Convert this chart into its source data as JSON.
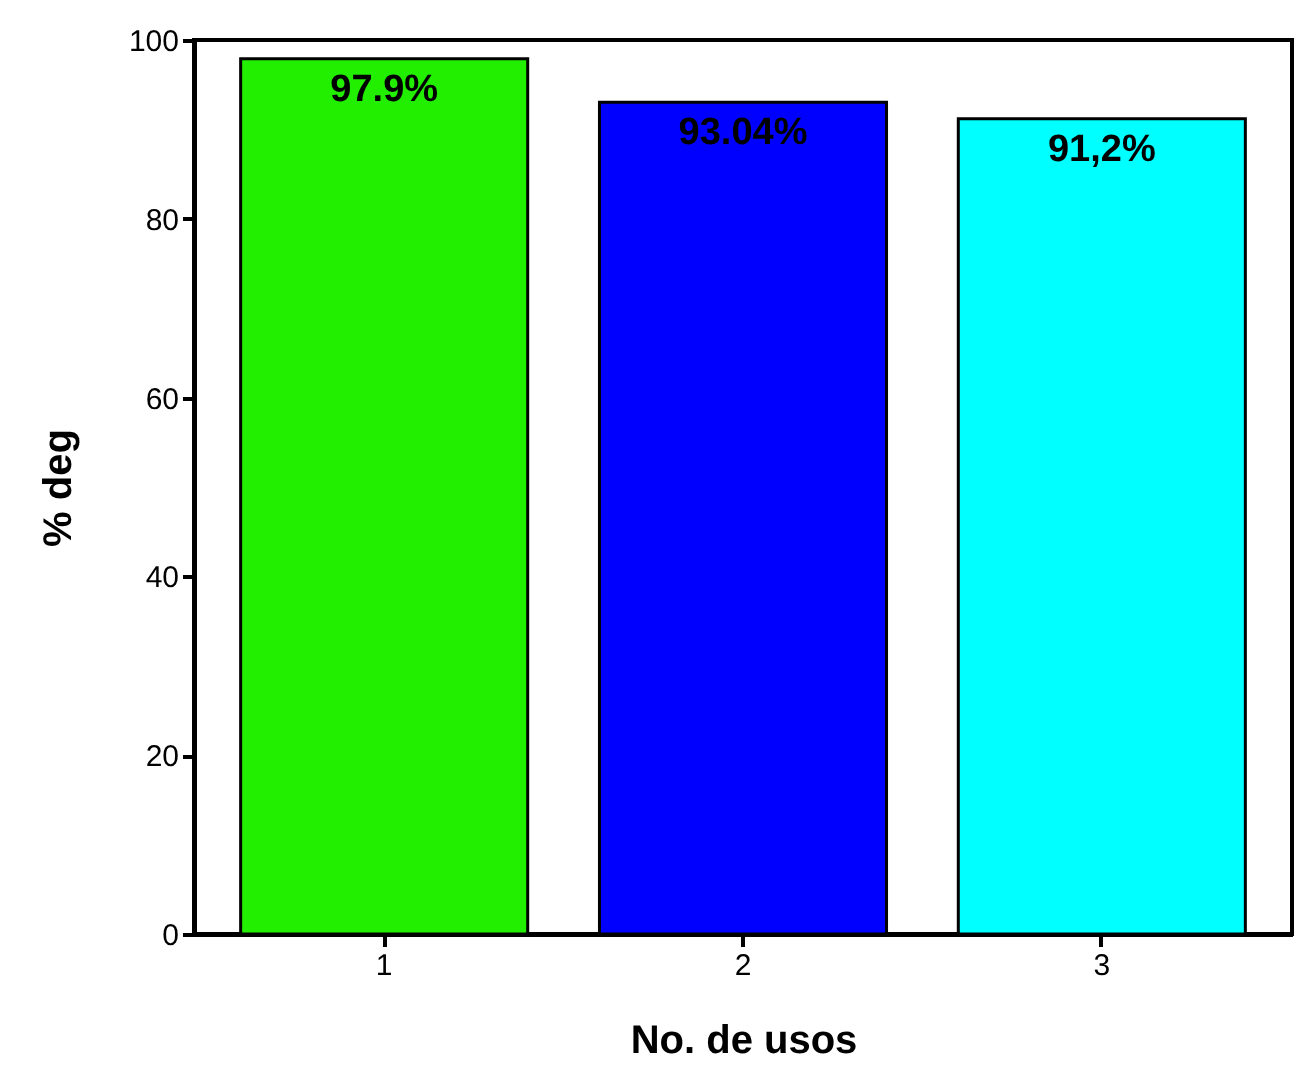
{
  "chart_data": {
    "type": "bar",
    "xlabel": "No. de usos",
    "ylabel": "% deg",
    "categories": [
      "1",
      "2",
      "3"
    ],
    "values": [
      97.9,
      93.04,
      91.2
    ],
    "colors": [
      "#22ee00",
      "#0000ff",
      "#00ffff"
    ],
    "value_labels": [
      "97.9%",
      "93.04%",
      "91,2%"
    ],
    "ylim": [
      0,
      100
    ],
    "yticks": [
      0,
      20,
      40,
      60,
      80,
      100
    ],
    "grid": false
  }
}
